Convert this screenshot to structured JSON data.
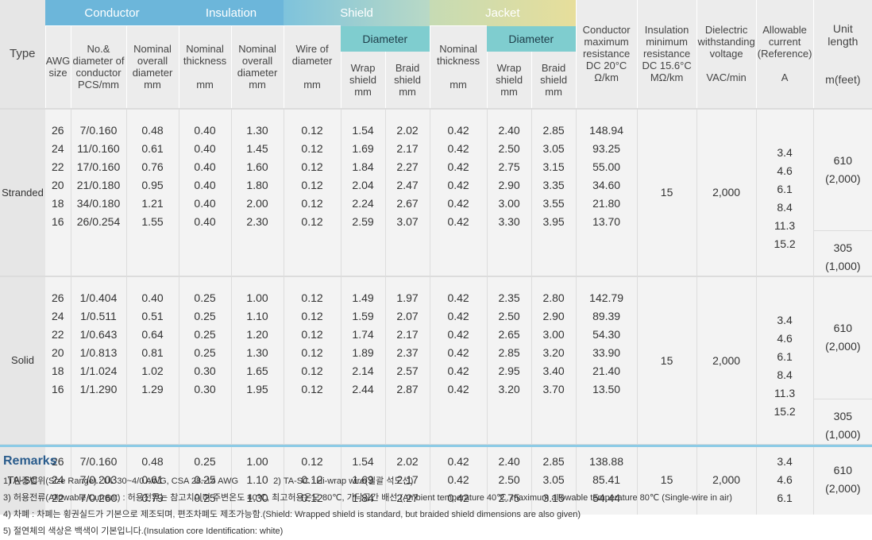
{
  "header": {
    "groups": {
      "conductor": "Conductor",
      "insulation": "Insulation",
      "shield": "Shield",
      "jacket": "Jacket"
    },
    "type": "Type",
    "awg": "AWG\nsize",
    "no_diameter": "No.&\ndiameter of\nconductor\nPCS/mm",
    "cond_overall": "Nominal\noverall\ndiameter\nmm",
    "ins_thickness": "Nominal\nthickness\n\nmm",
    "ins_overall": "Nominal\noverall\ndiameter\nmm",
    "wire_of_diameter": "Wire of\ndiameter\n\nmm",
    "diameter": "Diameter",
    "wrap_shield": "Wrap\nshield\nmm",
    "braid_shield": "Braid\nshield\nmm",
    "jacket_thickness": "Nominal\nthickness\n\nmm",
    "cond_resistance": "Conductor\nmaximum\nresistance\nDC 20°C\nΩ/km",
    "ins_resistance": "Insulation\nminimum\nresistance\nDC 15.6°C\nMΩ/km",
    "dielectric": "Dielectric\nwithstanding\nvoltage\n\nVAC/min",
    "allowable_current": "Allowable\ncurrent\n(Reference)\n\nA",
    "unit_length": "Unit\nlength\n\n\nm(feet)"
  },
  "groups": [
    {
      "type": "Stranded",
      "awg": [
        "26",
        "24",
        "22",
        "20",
        "18",
        "16"
      ],
      "no_diameter": [
        "7/0.160",
        "11/0.160",
        "17/0.160",
        "21/0.180",
        "34/0.180",
        "26/0.254"
      ],
      "cond_overall": [
        "0.48",
        "0.61",
        "0.76",
        "0.95",
        "1.21",
        "1.55"
      ],
      "ins_thickness": [
        "0.40",
        "0.40",
        "0.40",
        "0.40",
        "0.40",
        "0.40"
      ],
      "ins_overall": [
        "1.30",
        "1.45",
        "1.60",
        "1.80",
        "2.00",
        "2.30"
      ],
      "wire_of_diameter": [
        "0.12",
        "0.12",
        "0.12",
        "0.12",
        "0.12",
        "0.12"
      ],
      "wrap_shield": [
        "1.54",
        "1.69",
        "1.84",
        "2.04",
        "2.24",
        "2.59"
      ],
      "braid_shield": [
        "2.02",
        "2.17",
        "2.27",
        "2.47",
        "2.67",
        "3.07"
      ],
      "jacket_thickness": [
        "0.42",
        "0.42",
        "0.42",
        "0.42",
        "0.42",
        "0.42"
      ],
      "jacket_wrap": [
        "2.40",
        "2.50",
        "2.75",
        "2.90",
        "3.00",
        "3.30"
      ],
      "jacket_braid": [
        "2.85",
        "3.05",
        "3.15",
        "3.35",
        "3.55",
        "3.95"
      ],
      "cond_resistance": [
        "148.94",
        "93.25",
        "55.00",
        "34.60",
        "21.80",
        "13.70"
      ],
      "ins_resistance": "15",
      "dielectric": "2,000",
      "allowable_current": [
        "3.4",
        "4.6",
        "6.1",
        "8.4",
        "11.3",
        "15.2"
      ],
      "unit_length_a": "610\n(2,000)",
      "unit_length_b": "305\n(1,000)"
    },
    {
      "type": "Solid",
      "awg": [
        "26",
        "24",
        "22",
        "20",
        "18",
        "16"
      ],
      "no_diameter": [
        "1/0.404",
        "1/0.511",
        "1/0.643",
        "1/0.813",
        "1/1.024",
        "1/1.290"
      ],
      "cond_overall": [
        "0.40",
        "0.51",
        "0.64",
        "0.81",
        "1.02",
        "1.29"
      ],
      "ins_thickness": [
        "0.25",
        "0.25",
        "0.25",
        "0.25",
        "0.30",
        "0.30"
      ],
      "ins_overall": [
        "1.00",
        "1.10",
        "1.20",
        "1.30",
        "1.65",
        "1.95"
      ],
      "wire_of_diameter": [
        "0.12",
        "0.12",
        "0.12",
        "0.12",
        "0.12",
        "0.12"
      ],
      "wrap_shield": [
        "1.49",
        "1.59",
        "1.74",
        "1.89",
        "2.14",
        "2.44"
      ],
      "braid_shield": [
        "1.97",
        "2.07",
        "2.17",
        "2.37",
        "2.57",
        "2.87"
      ],
      "jacket_thickness": [
        "0.42",
        "0.42",
        "0.42",
        "0.42",
        "0.42",
        "0.42"
      ],
      "jacket_wrap": [
        "2.35",
        "2.50",
        "2.65",
        "2.85",
        "2.95",
        "3.20"
      ],
      "jacket_braid": [
        "2.80",
        "2.90",
        "3.00",
        "3.20",
        "3.40",
        "3.70"
      ],
      "cond_resistance": [
        "142.79",
        "89.39",
        "54.30",
        "33.90",
        "21.40",
        "13.50"
      ],
      "ins_resistance": "15",
      "dielectric": "2,000",
      "allowable_current": [
        "3.4",
        "4.6",
        "6.1",
        "8.4",
        "11.3",
        "15.2"
      ],
      "unit_length_a": "610\n(2,000)",
      "unit_length_b": "305\n(1,000)"
    },
    {
      "type": "TA-SC",
      "awg": [
        "26",
        "24",
        "22"
      ],
      "no_diameter": [
        "7/0.160",
        "7/0.203",
        "7/0.260"
      ],
      "cond_overall": [
        "0.48",
        "0.61",
        "0.79"
      ],
      "ins_thickness": [
        "0.25",
        "0.25",
        "0.25"
      ],
      "ins_overall": [
        "1.00",
        "1.10",
        "1.30"
      ],
      "wire_of_diameter": [
        "0.12",
        "0.12",
        "0.12"
      ],
      "wrap_shield": [
        "1.54",
        "1.69",
        "1.84"
      ],
      "braid_shield": [
        "2.02",
        "2.17",
        "2.27"
      ],
      "jacket_thickness": [
        "0.42",
        "0.42",
        "0.42"
      ],
      "jacket_wrap": [
        "2.40",
        "2.50",
        "2.75"
      ],
      "jacket_braid": [
        "2.85",
        "3.05",
        "3.15"
      ],
      "cond_resistance": [
        "138.88",
        "85.41",
        "54.44"
      ],
      "ins_resistance": "15",
      "dielectric": "2,000",
      "allowable_current": [
        "3.4",
        "4.6",
        "6.1"
      ],
      "unit_length_a": "610\n(2,000)"
    }
  ],
  "remarks": {
    "title": "Remarks",
    "r1": "1) 인증범위(Size Range) : UL 30~4/0 AWG, CSA 28~14 AWG",
    "r2": "2) TA-SC : Hi-wrap wire(일괄 석도선)",
    "r3": "3) 허용전류(Allowable Current) : 허용전류는 참고치이며 주변온도 40℃, 최고허용온도 80℃, 가닥공간 배선.(Ambient temperature 40℃, maximum allowable temperature 80℃ (Single-wire in air)",
    "r4": "4) 차폐 : 차폐는 횡권실드가 기본으로 제조되며, 편조차폐도 제조가능함.(Shield: Wrapped shield is standard, but braided shield dimensions are also given)",
    "r5": "5) 절연체의 색상은 백색이 기본입니다.(Insulation core Identification: white)"
  }
}
